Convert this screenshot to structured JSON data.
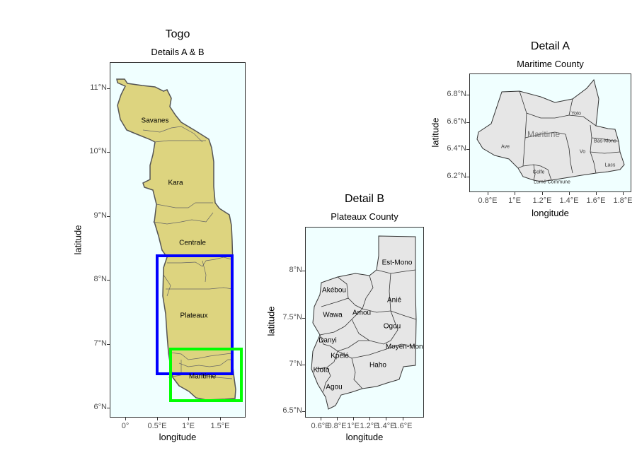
{
  "panel_main": {
    "title": "Togo",
    "subtitle": "Details A & B",
    "xlabel": "longitude",
    "ylabel": "latitude",
    "xticks": [
      "0°",
      "0.5°E",
      "1°E",
      "1.5°E"
    ],
    "yticks": [
      "11°N",
      "10°N",
      "9°N",
      "8°N",
      "7°N",
      "6°N"
    ],
    "regions": [
      "Savanes",
      "Kara",
      "Centrale",
      "Plateaux",
      "Maritime"
    ],
    "box_colors": {
      "detail_b": "#0000ff",
      "detail_a": "#00ff00"
    }
  },
  "panel_b": {
    "title": "Detail B",
    "subtitle": "Plateaux County",
    "xlabel": "longitude",
    "ylabel": "latitude",
    "xticks": [
      "0.6°E",
      "0.8°E",
      "1°E",
      "1.2°E",
      "1.4°E",
      "1.6°E"
    ],
    "yticks": [
      "8°N",
      "7.5°N",
      "7°N",
      "6.5°N"
    ],
    "regions": [
      "Est-Mono",
      "Akébou",
      "Anié",
      "Wawa",
      "Amou",
      "Ogou",
      "Danyi",
      "Moyen-Mono",
      "Kpélé",
      "Haho",
      "Kloto",
      "Agou"
    ]
  },
  "panel_a": {
    "title": "Detail A",
    "subtitle": "Maritime County",
    "xlabel": "longitude",
    "ylabel": "latitude",
    "xticks": [
      "0.8°E",
      "1°E",
      "1.2°E",
      "1.4°E",
      "1.6°E",
      "1.8°E"
    ],
    "yticks": [
      "6.8°N",
      "6.6°N",
      "6.4°N",
      "6.2°N"
    ],
    "regions": [
      "Yoto",
      "Maritime",
      "Ave",
      "Bas-Mono",
      "Vo",
      "Golfe",
      "Lacs",
      "Lomé Commune"
    ]
  },
  "colors": {
    "panel_bg": "#f0ffff",
    "togo_fill": "#ddd47f",
    "detail_fill": "#e6e6e6"
  }
}
